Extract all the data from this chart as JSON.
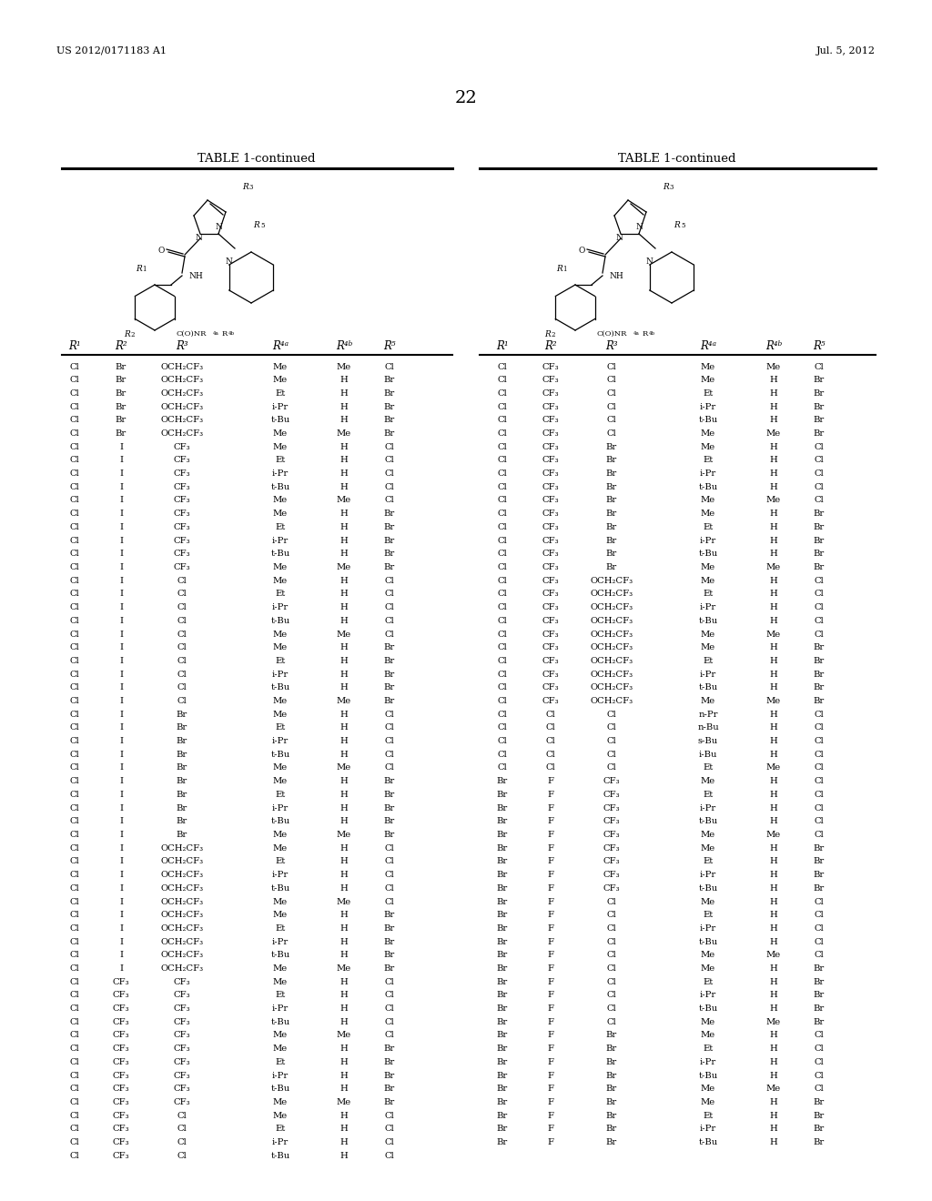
{
  "header_left": "US 2012/0171183 A1",
  "header_right": "Jul. 5, 2012",
  "page_number": "22",
  "table_title": "TABLE 1-continued",
  "col_headers": [
    "R¹",
    "R²",
    "R³",
    "R⁴ᵃ",
    "R⁴ᵇ",
    "R⁵"
  ],
  "left_table_data": [
    [
      "Cl",
      "Br",
      "OCH₂CF₃",
      "Me",
      "Me",
      "Cl"
    ],
    [
      "Cl",
      "Br",
      "OCH₂CF₃",
      "Me",
      "H",
      "Br"
    ],
    [
      "Cl",
      "Br",
      "OCH₂CF₃",
      "Et",
      "H",
      "Br"
    ],
    [
      "Cl",
      "Br",
      "OCH₂CF₃",
      "i-Pr",
      "H",
      "Br"
    ],
    [
      "Cl",
      "Br",
      "OCH₂CF₃",
      "t-Bu",
      "H",
      "Br"
    ],
    [
      "Cl",
      "Br",
      "OCH₂CF₃",
      "Me",
      "Me",
      "Br"
    ],
    [
      "Cl",
      "I",
      "CF₃",
      "Me",
      "H",
      "Cl"
    ],
    [
      "Cl",
      "I",
      "CF₃",
      "Et",
      "H",
      "Cl"
    ],
    [
      "Cl",
      "I",
      "CF₃",
      "i-Pr",
      "H",
      "Cl"
    ],
    [
      "Cl",
      "I",
      "CF₃",
      "t-Bu",
      "H",
      "Cl"
    ],
    [
      "Cl",
      "I",
      "CF₃",
      "Me",
      "Me",
      "Cl"
    ],
    [
      "Cl",
      "I",
      "CF₃",
      "Me",
      "H",
      "Br"
    ],
    [
      "Cl",
      "I",
      "CF₃",
      "Et",
      "H",
      "Br"
    ],
    [
      "Cl",
      "I",
      "CF₃",
      "i-Pr",
      "H",
      "Br"
    ],
    [
      "Cl",
      "I",
      "CF₃",
      "t-Bu",
      "H",
      "Br"
    ],
    [
      "Cl",
      "I",
      "CF₃",
      "Me",
      "Me",
      "Br"
    ],
    [
      "Cl",
      "I",
      "Cl",
      "Me",
      "H",
      "Cl"
    ],
    [
      "Cl",
      "I",
      "Cl",
      "Et",
      "H",
      "Cl"
    ],
    [
      "Cl",
      "I",
      "Cl",
      "i-Pr",
      "H",
      "Cl"
    ],
    [
      "Cl",
      "I",
      "Cl",
      "t-Bu",
      "H",
      "Cl"
    ],
    [
      "Cl",
      "I",
      "Cl",
      "Me",
      "Me",
      "Cl"
    ],
    [
      "Cl",
      "I",
      "Cl",
      "Me",
      "H",
      "Br"
    ],
    [
      "Cl",
      "I",
      "Cl",
      "Et",
      "H",
      "Br"
    ],
    [
      "Cl",
      "I",
      "Cl",
      "i-Pr",
      "H",
      "Br"
    ],
    [
      "Cl",
      "I",
      "Cl",
      "t-Bu",
      "H",
      "Br"
    ],
    [
      "Cl",
      "I",
      "Cl",
      "Me",
      "Me",
      "Br"
    ],
    [
      "Cl",
      "I",
      "Br",
      "Me",
      "H",
      "Cl"
    ],
    [
      "Cl",
      "I",
      "Br",
      "Et",
      "H",
      "Cl"
    ],
    [
      "Cl",
      "I",
      "Br",
      "i-Pr",
      "H",
      "Cl"
    ],
    [
      "Cl",
      "I",
      "Br",
      "t-Bu",
      "H",
      "Cl"
    ],
    [
      "Cl",
      "I",
      "Br",
      "Me",
      "Me",
      "Cl"
    ],
    [
      "Cl",
      "I",
      "Br",
      "Me",
      "H",
      "Br"
    ],
    [
      "Cl",
      "I",
      "Br",
      "Et",
      "H",
      "Br"
    ],
    [
      "Cl",
      "I",
      "Br",
      "i-Pr",
      "H",
      "Br"
    ],
    [
      "Cl",
      "I",
      "Br",
      "t-Bu",
      "H",
      "Br"
    ],
    [
      "Cl",
      "I",
      "Br",
      "Me",
      "Me",
      "Br"
    ],
    [
      "Cl",
      "I",
      "OCH₂CF₃",
      "Me",
      "H",
      "Cl"
    ],
    [
      "Cl",
      "I",
      "OCH₂CF₃",
      "Et",
      "H",
      "Cl"
    ],
    [
      "Cl",
      "I",
      "OCH₂CF₃",
      "i-Pr",
      "H",
      "Cl"
    ],
    [
      "Cl",
      "I",
      "OCH₂CF₃",
      "t-Bu",
      "H",
      "Cl"
    ],
    [
      "Cl",
      "I",
      "OCH₂CF₃",
      "Me",
      "Me",
      "Cl"
    ],
    [
      "Cl",
      "I",
      "OCH₂CF₃",
      "Me",
      "H",
      "Br"
    ],
    [
      "Cl",
      "I",
      "OCH₂CF₃",
      "Et",
      "H",
      "Br"
    ],
    [
      "Cl",
      "I",
      "OCH₂CF₃",
      "i-Pr",
      "H",
      "Br"
    ],
    [
      "Cl",
      "I",
      "OCH₂CF₃",
      "t-Bu",
      "H",
      "Br"
    ],
    [
      "Cl",
      "I",
      "OCH₂CF₃",
      "Me",
      "Me",
      "Br"
    ],
    [
      "Cl",
      "CF₃",
      "CF₃",
      "Me",
      "H",
      "Cl"
    ],
    [
      "Cl",
      "CF₃",
      "CF₃",
      "Et",
      "H",
      "Cl"
    ],
    [
      "Cl",
      "CF₃",
      "CF₃",
      "i-Pr",
      "H",
      "Cl"
    ],
    [
      "Cl",
      "CF₃",
      "CF₃",
      "t-Bu",
      "H",
      "Cl"
    ],
    [
      "Cl",
      "CF₃",
      "CF₃",
      "Me",
      "Me",
      "Cl"
    ],
    [
      "Cl",
      "CF₃",
      "CF₃",
      "Me",
      "H",
      "Br"
    ],
    [
      "Cl",
      "CF₃",
      "CF₃",
      "Et",
      "H",
      "Br"
    ],
    [
      "Cl",
      "CF₃",
      "CF₃",
      "i-Pr",
      "H",
      "Br"
    ],
    [
      "Cl",
      "CF₃",
      "CF₃",
      "t-Bu",
      "H",
      "Br"
    ],
    [
      "Cl",
      "CF₃",
      "CF₃",
      "Me",
      "Me",
      "Br"
    ],
    [
      "Cl",
      "CF₃",
      "Cl",
      "Me",
      "H",
      "Cl"
    ],
    [
      "Cl",
      "CF₃",
      "Cl",
      "Et",
      "H",
      "Cl"
    ],
    [
      "Cl",
      "CF₃",
      "Cl",
      "i-Pr",
      "H",
      "Cl"
    ],
    [
      "Cl",
      "CF₃",
      "Cl",
      "t-Bu",
      "H",
      "Cl"
    ]
  ],
  "right_table_data": [
    [
      "Cl",
      "CF₃",
      "Cl",
      "Me",
      "Me",
      "Cl"
    ],
    [
      "Cl",
      "CF₃",
      "Cl",
      "Me",
      "H",
      "Br"
    ],
    [
      "Cl",
      "CF₃",
      "Cl",
      "Et",
      "H",
      "Br"
    ],
    [
      "Cl",
      "CF₃",
      "Cl",
      "i-Pr",
      "H",
      "Br"
    ],
    [
      "Cl",
      "CF₃",
      "Cl",
      "t-Bu",
      "H",
      "Br"
    ],
    [
      "Cl",
      "CF₃",
      "Cl",
      "Me",
      "Me",
      "Br"
    ],
    [
      "Cl",
      "CF₃",
      "Br",
      "Me",
      "H",
      "Cl"
    ],
    [
      "Cl",
      "CF₃",
      "Br",
      "Et",
      "H",
      "Cl"
    ],
    [
      "Cl",
      "CF₃",
      "Br",
      "i-Pr",
      "H",
      "Cl"
    ],
    [
      "Cl",
      "CF₃",
      "Br",
      "t-Bu",
      "H",
      "Cl"
    ],
    [
      "Cl",
      "CF₃",
      "Br",
      "Me",
      "Me",
      "Cl"
    ],
    [
      "Cl",
      "CF₃",
      "Br",
      "Me",
      "H",
      "Br"
    ],
    [
      "Cl",
      "CF₃",
      "Br",
      "Et",
      "H",
      "Br"
    ],
    [
      "Cl",
      "CF₃",
      "Br",
      "i-Pr",
      "H",
      "Br"
    ],
    [
      "Cl",
      "CF₃",
      "Br",
      "t-Bu",
      "H",
      "Br"
    ],
    [
      "Cl",
      "CF₃",
      "Br",
      "Me",
      "Me",
      "Br"
    ],
    [
      "Cl",
      "CF₃",
      "OCH₂CF₃",
      "Me",
      "H",
      "Cl"
    ],
    [
      "Cl",
      "CF₃",
      "OCH₂CF₃",
      "Et",
      "H",
      "Cl"
    ],
    [
      "Cl",
      "CF₃",
      "OCH₂CF₃",
      "i-Pr",
      "H",
      "Cl"
    ],
    [
      "Cl",
      "CF₃",
      "OCH₂CF₃",
      "t-Bu",
      "H",
      "Cl"
    ],
    [
      "Cl",
      "CF₃",
      "OCH₂CF₃",
      "Me",
      "Me",
      "Cl"
    ],
    [
      "Cl",
      "CF₃",
      "OCH₂CF₃",
      "Me",
      "H",
      "Br"
    ],
    [
      "Cl",
      "CF₃",
      "OCH₂CF₃",
      "Et",
      "H",
      "Br"
    ],
    [
      "Cl",
      "CF₃",
      "OCH₂CF₃",
      "i-Pr",
      "H",
      "Br"
    ],
    [
      "Cl",
      "CF₃",
      "OCH₂CF₃",
      "t-Bu",
      "H",
      "Br"
    ],
    [
      "Cl",
      "CF₃",
      "OCH₂CF₃",
      "Me",
      "Me",
      "Br"
    ],
    [
      "Cl",
      "Cl",
      "Cl",
      "n-Pr",
      "H",
      "Cl"
    ],
    [
      "Cl",
      "Cl",
      "Cl",
      "n-Bu",
      "H",
      "Cl"
    ],
    [
      "Cl",
      "Cl",
      "Cl",
      "s-Bu",
      "H",
      "Cl"
    ],
    [
      "Cl",
      "Cl",
      "Cl",
      "i-Bu",
      "H",
      "Cl"
    ],
    [
      "Cl",
      "Cl",
      "Cl",
      "Et",
      "Me",
      "Cl"
    ],
    [
      "Br",
      "F",
      "CF₃",
      "Me",
      "H",
      "Cl"
    ],
    [
      "Br",
      "F",
      "CF₃",
      "Et",
      "H",
      "Cl"
    ],
    [
      "Br",
      "F",
      "CF₃",
      "i-Pr",
      "H",
      "Cl"
    ],
    [
      "Br",
      "F",
      "CF₃",
      "t-Bu",
      "H",
      "Cl"
    ],
    [
      "Br",
      "F",
      "CF₃",
      "Me",
      "Me",
      "Cl"
    ],
    [
      "Br",
      "F",
      "CF₃",
      "Me",
      "H",
      "Br"
    ],
    [
      "Br",
      "F",
      "CF₃",
      "Et",
      "H",
      "Br"
    ],
    [
      "Br",
      "F",
      "CF₃",
      "i-Pr",
      "H",
      "Br"
    ],
    [
      "Br",
      "F",
      "CF₃",
      "t-Bu",
      "H",
      "Br"
    ],
    [
      "Br",
      "F",
      "Cl",
      "Me",
      "H",
      "Cl"
    ],
    [
      "Br",
      "F",
      "Cl",
      "Et",
      "H",
      "Cl"
    ],
    [
      "Br",
      "F",
      "Cl",
      "i-Pr",
      "H",
      "Cl"
    ],
    [
      "Br",
      "F",
      "Cl",
      "t-Bu",
      "H",
      "Cl"
    ],
    [
      "Br",
      "F",
      "Cl",
      "Me",
      "Me",
      "Cl"
    ],
    [
      "Br",
      "F",
      "Cl",
      "Me",
      "H",
      "Br"
    ],
    [
      "Br",
      "F",
      "Cl",
      "Et",
      "H",
      "Br"
    ],
    [
      "Br",
      "F",
      "Cl",
      "i-Pr",
      "H",
      "Br"
    ],
    [
      "Br",
      "F",
      "Cl",
      "t-Bu",
      "H",
      "Br"
    ],
    [
      "Br",
      "F",
      "Cl",
      "Me",
      "Me",
      "Br"
    ],
    [
      "Br",
      "F",
      "Br",
      "Me",
      "H",
      "Cl"
    ],
    [
      "Br",
      "F",
      "Br",
      "Et",
      "H",
      "Cl"
    ],
    [
      "Br",
      "F",
      "Br",
      "i-Pr",
      "H",
      "Cl"
    ],
    [
      "Br",
      "F",
      "Br",
      "t-Bu",
      "H",
      "Cl"
    ],
    [
      "Br",
      "F",
      "Br",
      "Me",
      "Me",
      "Cl"
    ],
    [
      "Br",
      "F",
      "Br",
      "Me",
      "H",
      "Br"
    ],
    [
      "Br",
      "F",
      "Br",
      "Et",
      "H",
      "Br"
    ],
    [
      "Br",
      "F",
      "Br",
      "i-Pr",
      "H",
      "Br"
    ],
    [
      "Br",
      "F",
      "Br",
      "t-Bu",
      "H",
      "Br"
    ]
  ],
  "bg_color": "#ffffff",
  "text_color": "#000000",
  "font_size_header_bar": 8.0,
  "font_size_table_title": 9.5,
  "font_size_page_num": 14.0,
  "font_size_col_header": 8.5,
  "font_size_data": 7.2
}
